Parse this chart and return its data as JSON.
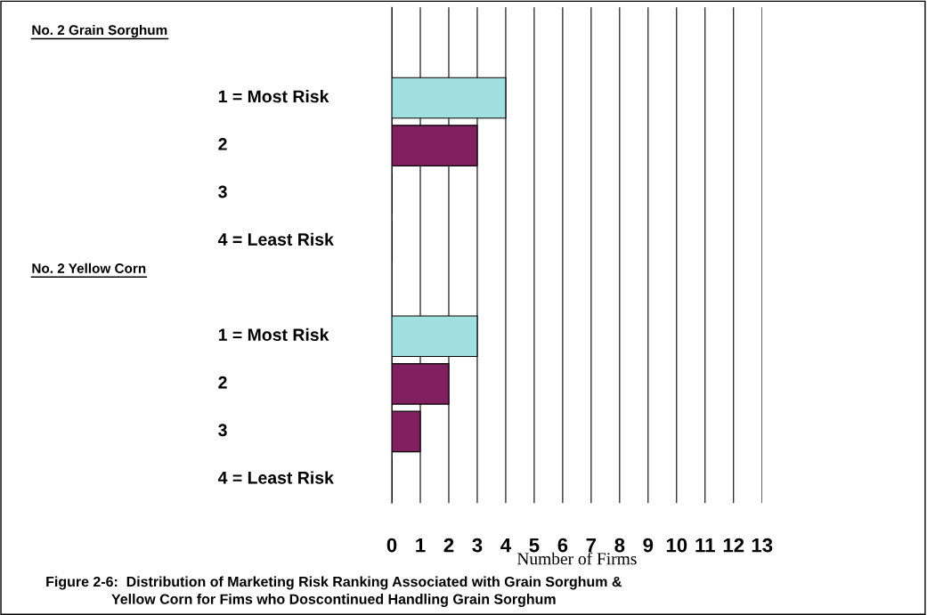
{
  "chart_data": {
    "type": "bar",
    "orientation": "horizontal",
    "title": "Figure 2-6:  Distribution of Marketing Risk Ranking Associated with Grain Sorghum &\nYellow Corn for Fims who Doscontinued Handling Grain Sorghum",
    "xlabel": "Number of Firms",
    "categories": [
      null,
      "1 = Most Risk",
      "2",
      "3",
      "4 = Least Risk",
      null,
      "1 = Most Risk",
      "2",
      "3",
      "4 = Least Risk"
    ],
    "annotations": [
      "No. 2 Grain Sorghum",
      "No. 2 Yellow Corn"
    ],
    "values": [
      null,
      4,
      3,
      0,
      0,
      null,
      3,
      2,
      1,
      0
    ],
    "colors": [
      "#a0e0e0",
      "#a0e0e0",
      "#802060",
      "#802060",
      "#802060",
      "#a0e0e0",
      "#a0e0e0",
      "#802060",
      "#802060",
      "#802060"
    ],
    "xlim": [
      0,
      13
    ],
    "xticks": [
      0,
      1,
      2,
      3,
      4,
      5,
      6,
      7,
      8,
      9,
      10,
      11,
      12,
      13
    ],
    "grid": "x"
  }
}
